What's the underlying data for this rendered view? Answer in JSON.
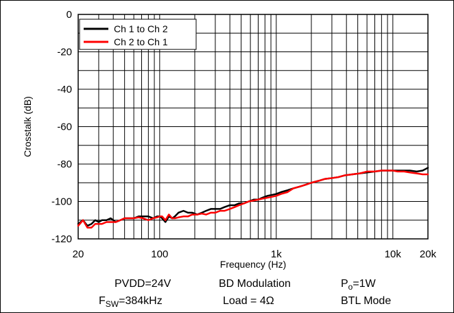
{
  "chart_data": {
    "type": "line",
    "xlabel": "Frequency (Hz)",
    "ylabel": "Crosstalk (dB)",
    "xscale": "log",
    "xlim": [
      20,
      20000
    ],
    "ylim": [
      -120,
      0
    ],
    "grid": true,
    "legend_position": "top-left",
    "x_ticks": [
      {
        "value": 20,
        "label": "20"
      },
      {
        "value": 100,
        "label": "100"
      },
      {
        "value": 1000,
        "label": "1k"
      },
      {
        "value": 10000,
        "label": "10k"
      },
      {
        "value": 20000,
        "label": "20k"
      }
    ],
    "y_ticks": [
      {
        "value": 0,
        "label": "0"
      },
      {
        "value": -20,
        "label": "-20"
      },
      {
        "value": -40,
        "label": "-40"
      },
      {
        "value": -60,
        "label": "-60"
      },
      {
        "value": -80,
        "label": "-80"
      },
      {
        "value": -100,
        "label": "-100"
      },
      {
        "value": -120,
        "label": "-120"
      }
    ],
    "series": [
      {
        "name": "Ch 1 to Ch 2",
        "color": "#000000",
        "x": [
          20,
          22,
          24,
          26,
          28,
          30,
          32,
          35,
          38,
          42,
          46,
          50,
          55,
          60,
          66,
          72,
          80,
          88,
          95,
          100,
          105,
          112,
          120,
          128,
          135,
          145,
          160,
          175,
          190,
          210,
          230,
          250,
          275,
          300,
          330,
          360,
          400,
          440,
          480,
          530,
          580,
          640,
          700,
          760,
          840,
          920,
          1000,
          1100,
          1250,
          1400,
          1600,
          1800,
          2000,
          2300,
          2600,
          3000,
          3400,
          3900,
          4500,
          5200,
          6000,
          7000,
          8000,
          9000,
          10000,
          11000,
          12500,
          14000,
          16000,
          18000,
          20000
        ],
        "values": [
          -112,
          -110,
          -113,
          -112,
          -110,
          -111,
          -110,
          -110,
          -109,
          -111,
          -110,
          -109,
          -109,
          -109,
          -108,
          -108,
          -108,
          -109,
          -108,
          -108,
          -109,
          -111,
          -108,
          -109,
          -108,
          -106,
          -105,
          -106,
          -106,
          -107,
          -106,
          -105,
          -104,
          -104,
          -104,
          -103,
          -102,
          -102,
          -101,
          -101,
          -100,
          -99,
          -99,
          -98,
          -97,
          -96.5,
          -96,
          -95,
          -94,
          -93,
          -92,
          -91,
          -90,
          -89,
          -88,
          -87.5,
          -87,
          -86,
          -85.5,
          -85,
          -84.5,
          -84,
          -83.5,
          -83.5,
          -83.5,
          -83.5,
          -83.5,
          -83.5,
          -84,
          -83.5,
          -82
        ]
      },
      {
        "name": "Ch 2 to Ch 1",
        "color": "#ff0000",
        "x": [
          20,
          22,
          24,
          26,
          28,
          30,
          32,
          35,
          38,
          42,
          46,
          50,
          55,
          60,
          66,
          72,
          80,
          88,
          95,
          100,
          105,
          112,
          120,
          128,
          135,
          145,
          160,
          175,
          190,
          210,
          230,
          250,
          275,
          300,
          330,
          360,
          400,
          440,
          480,
          530,
          580,
          640,
          700,
          760,
          840,
          920,
          1000,
          1100,
          1250,
          1400,
          1600,
          1800,
          2000,
          2300,
          2600,
          3000,
          3400,
          3900,
          4500,
          5200,
          6000,
          7000,
          8000,
          9000,
          10000,
          11000,
          12500,
          14000,
          16000,
          18000,
          20000
        ],
        "values": [
          -113,
          -110,
          -114,
          -114,
          -112,
          -112,
          -112,
          -111,
          -111,
          -111,
          -110,
          -109,
          -109,
          -109,
          -108.5,
          -109,
          -110,
          -109,
          -108.5,
          -108,
          -108,
          -110,
          -107,
          -109,
          -109,
          -108.5,
          -108,
          -108,
          -107,
          -107,
          -106.5,
          -107,
          -106,
          -106,
          -105,
          -105,
          -104,
          -103,
          -102,
          -101,
          -100,
          -99.5,
          -99,
          -98.5,
          -98,
          -97.5,
          -97,
          -96,
          -95,
          -93,
          -92,
          -91,
          -90,
          -89,
          -88,
          -87.5,
          -87,
          -86,
          -85.5,
          -85,
          -84,
          -84,
          -83.5,
          -83.5,
          -83.5,
          -84,
          -84,
          -84.5,
          -85,
          -85.5,
          -85.5
        ]
      }
    ]
  },
  "conditions": {
    "row1": {
      "pvdd": "PVDD=24V",
      "modulation": "BD Modulation",
      "power_prefix": "P",
      "power_sub": "o",
      "power_suffix": "=1W"
    },
    "row2": {
      "fsw_prefix": "F",
      "fsw_sub": "SW",
      "fsw_suffix": "=384kHz",
      "load": "Load = 4Ω",
      "mode": "BTL Mode"
    }
  }
}
